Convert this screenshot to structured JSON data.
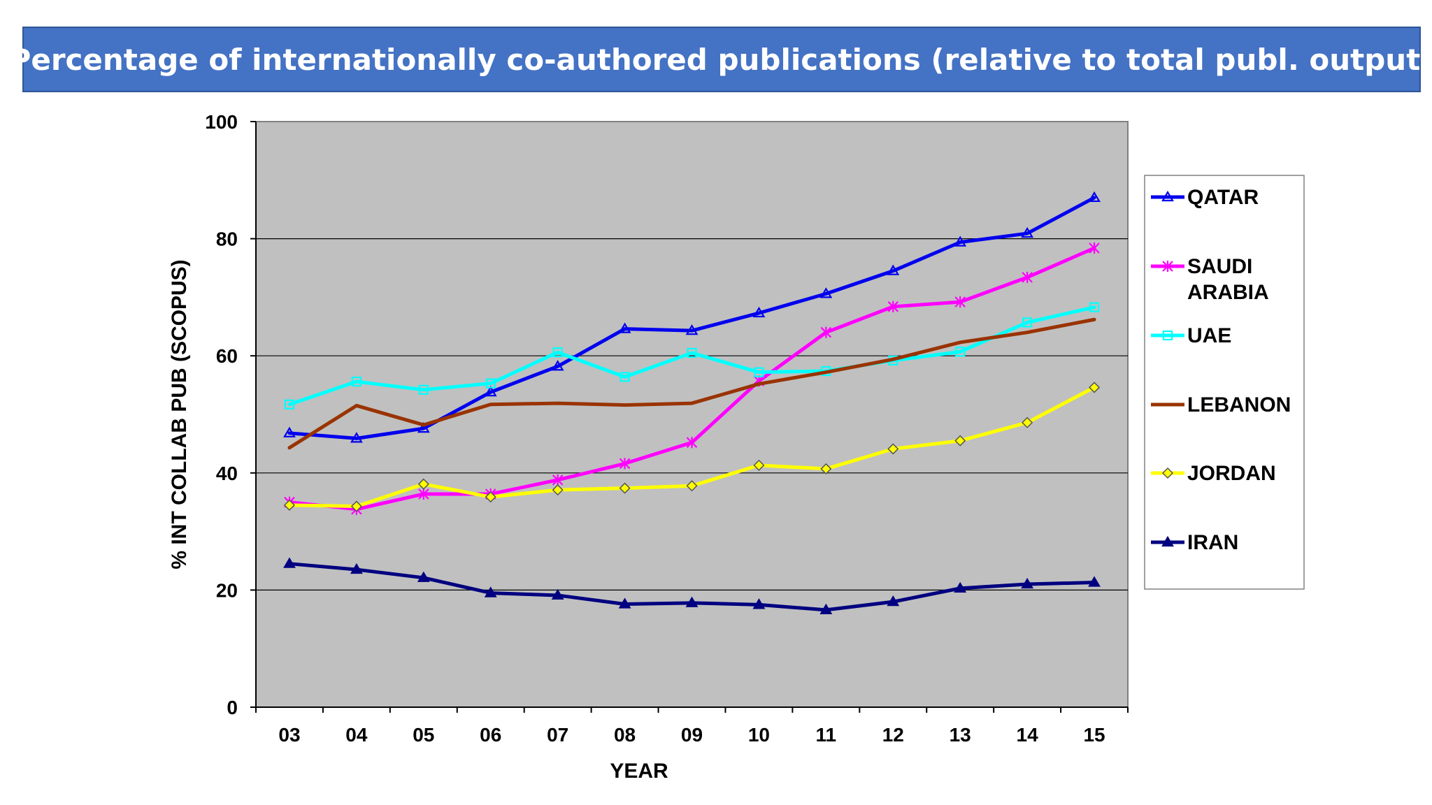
{
  "slide": {
    "title": "Percentage of internationally co-authored publications (relative to total publ. output)"
  },
  "colors": {
    "title_background": "#4472c4",
    "plot_background": "#c0c0c0"
  },
  "chart_data": {
    "type": "line",
    "title": "",
    "xlabel": "YEAR",
    "ylabel": "% INT COLLAB PUB (SCOPUS)",
    "categories": [
      "03",
      "04",
      "05",
      "06",
      "07",
      "08",
      "09",
      "10",
      "11",
      "12",
      "13",
      "14",
      "15"
    ],
    "ylim": [
      0,
      100
    ],
    "yticks": [
      0,
      20,
      40,
      60,
      80,
      100
    ],
    "grid": true,
    "legend_position": "right",
    "series": [
      {
        "name": "QATAR",
        "color": "#0000ee",
        "marker": "triangle-open",
        "values": [
          46.8,
          45.9,
          47.6,
          53.8,
          58.2,
          64.6,
          64.3,
          67.3,
          70.6,
          74.5,
          79.4,
          80.9,
          87.0
        ]
      },
      {
        "name": "SAUDI\nARABIA",
        "color": "#ff00ff",
        "marker": "asterisk",
        "values": [
          35.0,
          33.8,
          36.4,
          36.4,
          38.8,
          41.6,
          45.2,
          55.7,
          64.0,
          68.4,
          69.2,
          73.4,
          78.4
        ]
      },
      {
        "name": "UAE",
        "color": "#00ffff",
        "marker": "square-open",
        "values": [
          51.7,
          55.6,
          54.2,
          55.3,
          60.6,
          56.4,
          60.5,
          57.2,
          57.4,
          59.2,
          60.7,
          65.7,
          68.3
        ]
      },
      {
        "name": "LEBANON",
        "color": "#993300",
        "marker": "none",
        "values": [
          44.3,
          51.5,
          48.2,
          51.7,
          51.9,
          51.6,
          51.9,
          55.2,
          57.2,
          59.4,
          62.3,
          64.0,
          66.2
        ]
      },
      {
        "name": "JORDAN",
        "color": "#ffff00",
        "marker": "diamond",
        "values": [
          34.5,
          34.3,
          38.1,
          35.9,
          37.1,
          37.4,
          37.8,
          41.3,
          40.7,
          44.1,
          45.5,
          48.6,
          54.6
        ]
      },
      {
        "name": "IRAN",
        "color": "#000080",
        "marker": "triangle-filled",
        "values": [
          24.5,
          23.5,
          22.1,
          19.5,
          19.1,
          17.6,
          17.8,
          17.5,
          16.6,
          18.0,
          20.3,
          21.0,
          21.3
        ]
      }
    ]
  }
}
